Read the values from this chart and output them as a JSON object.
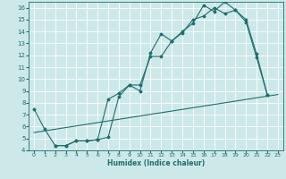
{
  "xlabel": "Humidex (Indice chaleur)",
  "bg_color": "#cde8e8",
  "grid_color": "#b0d8d8",
  "line_color": "#1e6e6e",
  "xlim": [
    -0.5,
    23.5
  ],
  "ylim": [
    4,
    16.5
  ],
  "xticks": [
    0,
    1,
    2,
    3,
    4,
    5,
    6,
    7,
    8,
    9,
    10,
    11,
    12,
    13,
    14,
    15,
    16,
    17,
    18,
    19,
    20,
    21,
    22,
    23
  ],
  "yticks": [
    4,
    5,
    6,
    7,
    8,
    9,
    10,
    11,
    12,
    13,
    14,
    15,
    16
  ],
  "line1_x": [
    0,
    1,
    2,
    3,
    4,
    5,
    6,
    7,
    8,
    9,
    10,
    11,
    12,
    13,
    14,
    15,
    16,
    17,
    18,
    19,
    20,
    21,
    22
  ],
  "line1_y": [
    7.5,
    5.8,
    4.4,
    4.4,
    4.8,
    4.8,
    4.9,
    5.1,
    8.5,
    9.5,
    9.0,
    12.2,
    13.8,
    13.2,
    14.0,
    14.7,
    16.2,
    15.7,
    16.5,
    15.8,
    14.8,
    11.8,
    8.7
  ],
  "line2_x": [
    2,
    3,
    4,
    5,
    6,
    7,
    8,
    9,
    10,
    11,
    12,
    13,
    14,
    15,
    16,
    17,
    18,
    19,
    20,
    21,
    22
  ],
  "line2_y": [
    4.4,
    4.4,
    4.8,
    4.8,
    4.9,
    8.3,
    8.8,
    9.5,
    9.5,
    11.9,
    11.9,
    13.2,
    13.9,
    15.0,
    15.3,
    16.0,
    15.5,
    15.8,
    15.0,
    12.1,
    8.7
  ],
  "line3_x": [
    0,
    23
  ],
  "line3_y": [
    5.5,
    8.7
  ]
}
